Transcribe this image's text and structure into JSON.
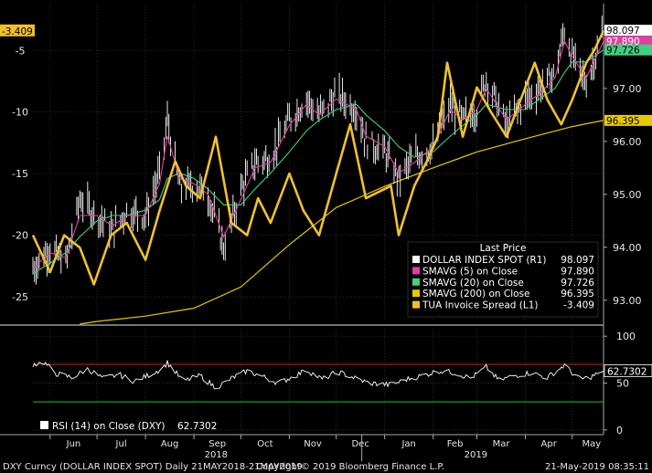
{
  "footer": {
    "left": "DXY Curncy (DOLLAR INDEX SPOT)  Daily 21MAY2018-21MAY2019",
    "center": "Copyright© 2019 Bloomberg Finance L.P.",
    "right": "21-May-2019 08:35:11"
  },
  "colors": {
    "background": "#000000",
    "dxy": "#ffffff",
    "sma5": "#e040a0",
    "sma20": "#40d080",
    "sma200": "#e8c800",
    "spread": "#f0c030",
    "rsi_line": "#ffffff",
    "rsi_upper": "#d02020",
    "rsi_lower": "#20c020"
  },
  "chart_data": [
    {
      "type": "line",
      "legend": {
        "title": "Last Price",
        "position": "bottom-right",
        "entries": [
          {
            "label": "DOLLAR INDEX SPOT  (R1)",
            "value": "98.097",
            "color": "#ffffff"
          },
          {
            "label": "SMAVG (5)  on Close",
            "value": "97.890",
            "color": "#e040a0"
          },
          {
            "label": "SMAVG (20)  on Close",
            "value": "97.726",
            "color": "#40d080"
          },
          {
            "label": "SMAVG (200)  on Close",
            "value": "96.395",
            "color": "#e8c800"
          },
          {
            "label": "TUA Invoice Spread  (L1)",
            "value": "-3.409",
            "color": "#f0c030"
          }
        ]
      },
      "x_axis": {
        "months": [
          "Jun",
          "Jul",
          "Aug",
          "Sep",
          "Oct",
          "Nov",
          "Dec",
          "Jan",
          "Feb",
          "Mar",
          "Apr",
          "May"
        ],
        "years": [
          "2018",
          "2019"
        ]
      },
      "y_left": {
        "ticks": [
          "-5",
          "-10",
          "-15",
          "-20",
          "-25"
        ],
        "range": [
          -27,
          -1.2
        ]
      },
      "y_right": {
        "ticks": [
          "97.00",
          "96.00",
          "95.00",
          "94.00",
          "93.00"
        ],
        "range": [
          92.6,
          98.6
        ]
      },
      "last_value_tags": [
        {
          "side": "left",
          "value": "-3.409",
          "y": -3.409,
          "bg": "#f0c030",
          "fg": "#000000"
        },
        {
          "side": "right",
          "value": "98.097",
          "y": 98.097,
          "bg": "#ffffff",
          "fg": "#000000"
        },
        {
          "side": "right",
          "value": "97.890",
          "y": 97.89,
          "bg": "#e040a0",
          "fg": "#ffffff"
        },
        {
          "side": "right",
          "value": "97.726",
          "y": 97.726,
          "bg": "#40d080",
          "fg": "#000000"
        },
        {
          "side": "right",
          "value": "96.395",
          "y": 96.395,
          "bg": "#e8c800",
          "fg": "#000000"
        }
      ],
      "series": [
        {
          "name": "DOLLAR INDEX SPOT",
          "axis": "right",
          "style": "bars",
          "x": [
            "2018-05-21",
            "2018-06-01",
            "2018-06-11",
            "2018-06-20",
            "2018-07-01",
            "2018-07-11",
            "2018-07-20",
            "2018-08-01",
            "2018-08-10",
            "2018-08-15",
            "2018-08-23",
            "2018-09-01",
            "2018-09-10",
            "2018-09-20",
            "2018-10-01",
            "2018-10-10",
            "2018-10-20",
            "2018-11-01",
            "2018-11-12",
            "2018-11-20",
            "2018-12-01",
            "2018-12-14",
            "2018-12-20",
            "2019-01-01",
            "2019-01-10",
            "2019-01-20",
            "2019-02-01",
            "2019-02-12",
            "2019-02-20",
            "2019-03-01",
            "2019-03-07",
            "2019-03-20",
            "2019-04-01",
            "2019-04-10",
            "2019-04-20",
            "2019-04-26",
            "2019-05-01",
            "2019-05-10",
            "2019-05-21"
          ],
          "values": [
            93.6,
            94.0,
            93.7,
            94.9,
            94.6,
            94.3,
            94.7,
            94.6,
            95.4,
            96.4,
            95.1,
            95.2,
            95.0,
            94.0,
            95.1,
            95.6,
            95.7,
            96.4,
            96.8,
            96.5,
            96.9,
            96.6,
            96.0,
            95.8,
            95.3,
            95.7,
            95.9,
            96.7,
            96.4,
            96.6,
            97.2,
            96.3,
            96.8,
            97.0,
            97.3,
            98.1,
            97.6,
            97.1,
            98.1
          ]
        },
        {
          "name": "SMAVG (5)",
          "axis": "right",
          "x": [
            "2018-05-21",
            "2018-06-01",
            "2018-06-11",
            "2018-06-20",
            "2018-07-01",
            "2018-07-11",
            "2018-07-20",
            "2018-08-01",
            "2018-08-10",
            "2018-08-15",
            "2018-08-23",
            "2018-09-01",
            "2018-09-10",
            "2018-09-20",
            "2018-10-01",
            "2018-10-10",
            "2018-10-20",
            "2018-11-01",
            "2018-11-12",
            "2018-11-20",
            "2018-12-01",
            "2018-12-14",
            "2018-12-20",
            "2019-01-01",
            "2019-01-10",
            "2019-01-20",
            "2019-02-01",
            "2019-02-12",
            "2019-02-20",
            "2019-03-01",
            "2019-03-07",
            "2019-03-20",
            "2019-04-01",
            "2019-04-10",
            "2019-04-20",
            "2019-04-26",
            "2019-05-01",
            "2019-05-10",
            "2019-05-21"
          ],
          "values": [
            93.6,
            93.9,
            93.8,
            94.6,
            94.6,
            94.4,
            94.6,
            94.6,
            95.2,
            96.1,
            95.3,
            95.2,
            95.0,
            94.2,
            94.9,
            95.5,
            95.6,
            96.3,
            96.7,
            96.5,
            96.8,
            96.6,
            96.1,
            95.9,
            95.4,
            95.6,
            95.9,
            96.6,
            96.4,
            96.6,
            97.0,
            96.4,
            96.7,
            96.9,
            97.2,
            97.9,
            97.6,
            97.2,
            97.89
          ]
        },
        {
          "name": "SMAVG (20)",
          "axis": "right",
          "x": [
            "2018-05-21",
            "2018-06-01",
            "2018-06-11",
            "2018-06-20",
            "2018-07-01",
            "2018-07-11",
            "2018-07-20",
            "2018-08-01",
            "2018-08-10",
            "2018-08-15",
            "2018-08-23",
            "2018-09-01",
            "2018-09-10",
            "2018-09-20",
            "2018-10-01",
            "2018-10-10",
            "2018-10-20",
            "2018-11-01",
            "2018-11-12",
            "2018-11-20",
            "2018-12-01",
            "2018-12-14",
            "2018-12-20",
            "2019-01-01",
            "2019-01-10",
            "2019-01-20",
            "2019-02-01",
            "2019-02-12",
            "2019-02-20",
            "2019-03-01",
            "2019-03-07",
            "2019-03-20",
            "2019-04-01",
            "2019-04-10",
            "2019-04-20",
            "2019-04-26",
            "2019-05-01",
            "2019-05-10",
            "2019-05-21"
          ],
          "values": [
            93.5,
            93.7,
            93.9,
            94.2,
            94.5,
            94.6,
            94.6,
            94.7,
            94.9,
            95.3,
            95.4,
            95.3,
            95.1,
            94.8,
            94.8,
            95.1,
            95.4,
            95.8,
            96.2,
            96.4,
            96.6,
            96.7,
            96.5,
            96.2,
            95.9,
            95.7,
            95.8,
            96.1,
            96.3,
            96.5,
            96.7,
            96.6,
            96.6,
            96.8,
            97.0,
            97.3,
            97.5,
            97.5,
            97.726
          ]
        },
        {
          "name": "SMAVG (200)",
          "axis": "right",
          "x": [
            "2018-06-20",
            "2018-07-01",
            "2018-08-01",
            "2018-09-01",
            "2018-10-01",
            "2018-11-01",
            "2018-12-01",
            "2019-01-01",
            "2019-02-01",
            "2019-03-01",
            "2019-04-01",
            "2019-05-01",
            "2019-05-21"
          ],
          "values": [
            92.55,
            92.6,
            92.7,
            92.85,
            93.25,
            94.05,
            94.75,
            95.15,
            95.5,
            95.8,
            96.05,
            96.28,
            96.395
          ]
        },
        {
          "name": "TUA Invoice Spread",
          "axis": "left",
          "x": [
            "2018-05-21",
            "2018-06-01",
            "2018-06-10",
            "2018-06-20",
            "2018-06-29",
            "2018-07-10",
            "2018-07-20",
            "2018-08-01",
            "2018-08-10",
            "2018-08-20",
            "2018-08-27",
            "2018-09-05",
            "2018-09-15",
            "2018-09-25",
            "2018-10-05",
            "2018-10-12",
            "2018-10-20",
            "2018-11-01",
            "2018-11-10",
            "2018-11-20",
            "2018-12-01",
            "2018-12-10",
            "2018-12-20",
            "2019-01-05",
            "2019-01-10",
            "2019-01-20",
            "2019-01-28",
            "2019-02-04",
            "2019-02-10",
            "2019-02-20",
            "2019-03-01",
            "2019-03-10",
            "2019-03-20",
            "2019-04-01",
            "2019-04-07",
            "2019-04-15",
            "2019-04-24",
            "2019-05-01",
            "2019-05-10",
            "2019-05-15",
            "2019-05-21"
          ],
          "values": [
            -20,
            -23,
            -20,
            -21,
            -24,
            -20,
            -19,
            -22,
            -18,
            -14,
            -16,
            -17,
            -12,
            -19,
            -20,
            -17,
            -19,
            -15,
            -18,
            -20,
            -15,
            -11,
            -17,
            -16,
            -20,
            -16,
            -14,
            -12,
            -6,
            -12,
            -8,
            -10,
            -12,
            -8,
            -6,
            -9,
            -11,
            -9,
            -6,
            -5,
            -3.409
          ]
        }
      ]
    },
    {
      "type": "line",
      "legend": {
        "position": "bottom-left",
        "entries": [
          {
            "label": "RSI (14)  on Close (DXY)",
            "value": "62.7302",
            "color": "#ffffff"
          }
        ]
      },
      "y_right": {
        "ticks": [
          "100",
          "50",
          "0"
        ],
        "range": [
          -5,
          108
        ]
      },
      "thresholds": [
        {
          "value": 70,
          "color": "#d02020"
        },
        {
          "value": 30,
          "color": "#20c020"
        }
      ],
      "last_value_tag": {
        "value": "62.7302",
        "y": 62.7302
      },
      "series": [
        {
          "name": "RSI (14)",
          "x": [
            "2018-05-21",
            "2018-05-28",
            "2018-06-05",
            "2018-06-15",
            "2018-06-25",
            "2018-07-05",
            "2018-07-15",
            "2018-07-25",
            "2018-08-05",
            "2018-08-12",
            "2018-08-15",
            "2018-08-25",
            "2018-09-05",
            "2018-09-15",
            "2018-09-25",
            "2018-10-05",
            "2018-10-15",
            "2018-10-25",
            "2018-11-05",
            "2018-11-12",
            "2018-11-22",
            "2018-12-02",
            "2018-12-12",
            "2018-12-22",
            "2019-01-05",
            "2019-01-15",
            "2019-01-25",
            "2019-02-05",
            "2019-02-15",
            "2019-02-25",
            "2019-03-07",
            "2019-03-15",
            "2019-03-25",
            "2019-04-05",
            "2019-04-15",
            "2019-04-26",
            "2019-05-05",
            "2019-05-12",
            "2019-05-21"
          ],
          "values": [
            70,
            72,
            60,
            56,
            65,
            55,
            59,
            52,
            60,
            66,
            72,
            52,
            58,
            45,
            55,
            63,
            57,
            50,
            58,
            64,
            54,
            62,
            56,
            50,
            48,
            54,
            58,
            63,
            61,
            55,
            67,
            53,
            58,
            61,
            56,
            69,
            54,
            56,
            62.7302
          ]
        }
      ]
    }
  ]
}
